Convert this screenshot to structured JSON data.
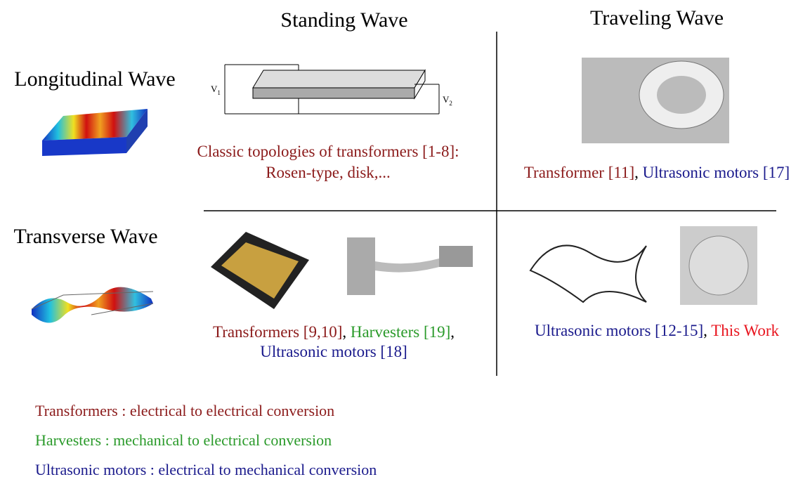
{
  "columns": [
    "Standing Wave",
    "Traveling Wave"
  ],
  "rows": [
    "Longitudinal Wave",
    "Transverse Wave"
  ],
  "schematic_labels": [
    {
      "main": "V",
      "sub": "1"
    },
    {
      "main": "V",
      "sub": "2"
    }
  ],
  "cells": [
    {
      "lines": [
        [
          {
            "text": "Classic topologies of transformers [1-8]:",
            "color": "#8b1a1a"
          }
        ],
        [
          {
            "text": "Rosen-type, disk,...",
            "color": "#8b1a1a"
          }
        ]
      ]
    },
    {
      "lines": [
        [
          {
            "text": "Transformer [11]",
            "color": "#8b1a1a"
          },
          {
            "text": ", ",
            "color": "#000000"
          },
          {
            "text": "Ultrasonic motors [17]",
            "color": "#1a1a8c"
          }
        ]
      ]
    },
    {
      "lines": [
        [
          {
            "text": "Transformers [9,10]",
            "color": "#8b1a1a"
          },
          {
            "text": ", ",
            "color": "#000000"
          },
          {
            "text": "Harvesters [19]",
            "color": "#2a9a2a"
          },
          {
            "text": ",",
            "color": "#000000"
          }
        ],
        [
          {
            "text": "Ultrasonic motors [18]",
            "color": "#1a1a8c"
          }
        ]
      ]
    },
    {
      "lines": [
        [
          {
            "text": "Ultrasonic motors [12-15]",
            "color": "#1a1a8c"
          },
          {
            "text": ", ",
            "color": "#000000"
          },
          {
            "text": "This Work",
            "color": "#e8141e"
          }
        ]
      ]
    }
  ],
  "legend": [
    {
      "text": "Transformers : electrical to electrical conversion",
      "color": "#8b1a1a"
    },
    {
      "text": "Harvesters : mechanical to electrical conversion",
      "color": "#2a9a2a"
    },
    {
      "text": "Ultrasonic motors : electrical to mechanical conversion",
      "color": "#1a1a8c"
    }
  ]
}
